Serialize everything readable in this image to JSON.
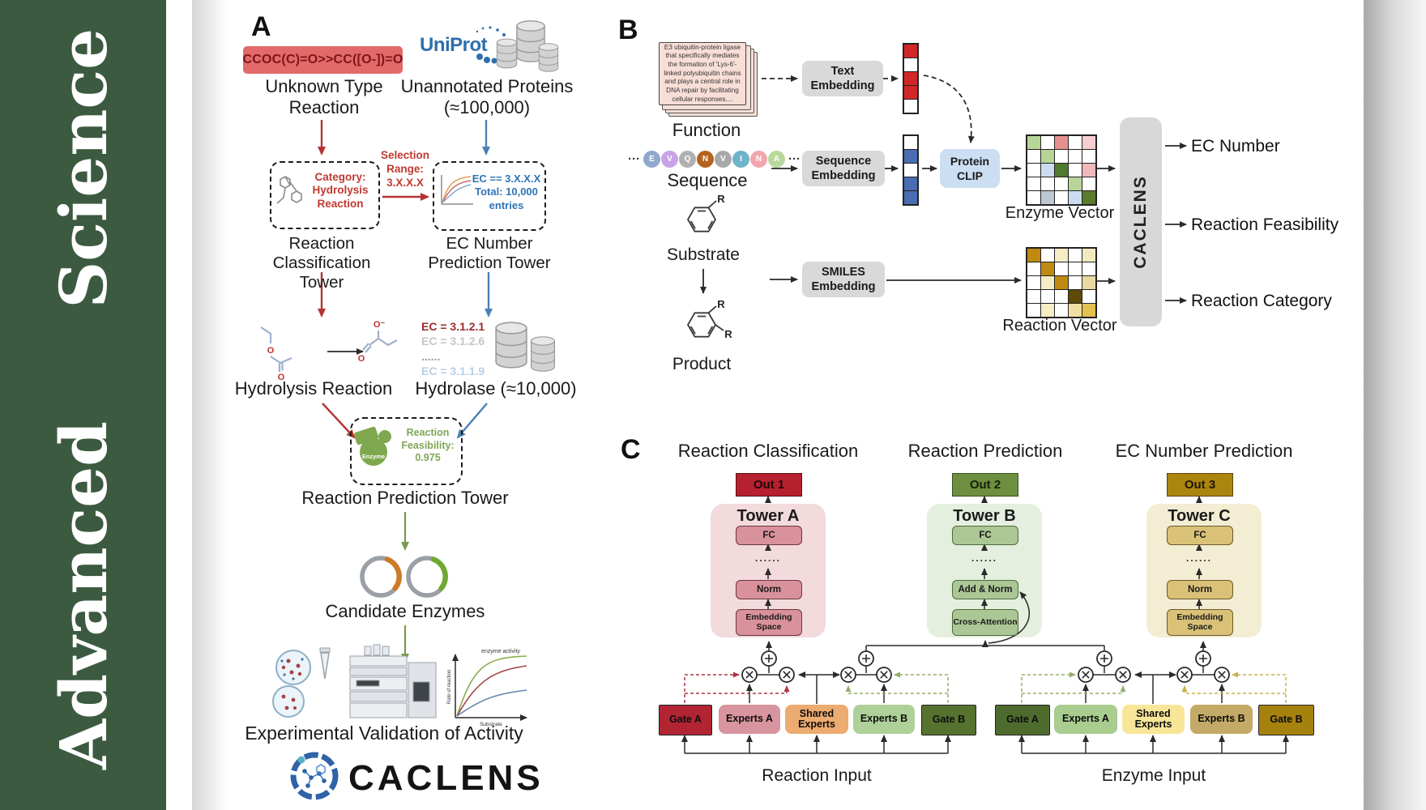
{
  "journal": {
    "name_words": [
      "Advanced",
      "Science"
    ]
  },
  "colors": {
    "sidebar_green": "#3c5a40",
    "red_accent": "#b63232",
    "blue_accent": "#4c80b5",
    "green_accent": "#7a9a4e",
    "uniprot_blue": "#2f6fae",
    "out1": "#b7202e",
    "out2": "#6d8f3f",
    "out3": "#ab850f"
  },
  "panelA": {
    "label": "A",
    "smiles": "CCOC(C)=O>>CC([O-])=O",
    "unknown_reaction": "Unknown Type Reaction",
    "uniprot": "UniProt",
    "unannotated": "Unannotated Proteins (≈100,000)",
    "category_text": "Category: Hydrolysis Reaction",
    "selection_text": "Selection Range: 3.X.X.X",
    "ec_condition": "EC == 3.X.X.X",
    "ec_total": "Total: 10,000 entries",
    "tower1": "Reaction Classification Tower",
    "tower2": "EC Number Prediction Tower",
    "hydrolysis": "Hydrolysis Reaction",
    "ec_list": [
      {
        "text": "EC = 3.1.2.1",
        "color": "#9c2b2b"
      },
      {
        "text": "EC = 3.1.2.6",
        "color": "#c6c6c6"
      },
      {
        "text": "......",
        "color": "#9a9a9a"
      },
      {
        "text": "EC = 3.1.1.9",
        "color": "#b9cfe6"
      }
    ],
    "hydrolase": "Hydrolase (≈10,000)",
    "enzyme_label": "Enzyme",
    "feasibility_label": "Reaction Feasibility:",
    "feasibility_value": "0.975",
    "tower3": "Reaction Prediction Tower",
    "candidates": "Candidate Enzymes",
    "chart": {
      "curve_label": "enzyme activity",
      "ylabel": "Rate of reaction",
      "xlabel": "Substrate"
    },
    "validation": "Experimental Validation of Activity",
    "logo": "CACLENS",
    "o_label": "O",
    "ominus_label": "O⁻"
  },
  "panelB": {
    "label": "B",
    "function_card": "E3 ubiquitin-protein ligase that specifically mediates the formation of 'Lys-6'-linked polyubiquitin chains and plays a central role in DNA repair by facilitating cellular responses....",
    "function_label": "Function",
    "ellipsis": "···",
    "residues": [
      {
        "letter": "E",
        "color": "#8fa8cc"
      },
      {
        "letter": "V",
        "color": "#c9a3e8"
      },
      {
        "letter": "Q",
        "color": "#b0b0b0"
      },
      {
        "letter": "N",
        "color": "#b5621f"
      },
      {
        "letter": "V",
        "color": "#a8a8a8"
      },
      {
        "letter": "I",
        "color": "#6fb3c9"
      },
      {
        "letter": "N",
        "color": "#f2a6ae"
      },
      {
        "letter": "A",
        "color": "#b8d89c"
      }
    ],
    "sequence_label": "Sequence",
    "text_embedding": "Text Embedding",
    "sequence_embedding": "Sequence Embedding",
    "smiles_embedding": "SMILES Embedding",
    "protein_clip": "Protein CLIP",
    "substrate_label": "Substrate",
    "product_label": "Product",
    "r_label": "R",
    "text_vector": [
      "#d42626",
      "#ffffff",
      "#d42626",
      "#d42626",
      "#ffffff"
    ],
    "seq_vector": [
      "#ffffff",
      "#4a6cb3",
      "#ffffff",
      "#4a6cb3",
      "#4a6cb3"
    ],
    "enzyme_vector": {
      "label": "Enzyme Vector",
      "cells": [
        "#b8d598",
        "#ffffff",
        "#e89090",
        "#ffffff",
        "#f6cdd0",
        "#ffffff",
        "#b8d598",
        "#ffffff",
        "#ffffff",
        "#ffffff",
        "#ffffff",
        "#ccdcf0",
        "#4f7a30",
        "#ffffff",
        "#f0b8bc",
        "#ffffff",
        "#ffffff",
        "#ffffff",
        "#b8d598",
        "#ffffff",
        "#ffffff",
        "#bcc8d4",
        "#ffffff",
        "#ccdcf0",
        "#5a7a2e"
      ]
    },
    "reaction_vector": {
      "label": "Reaction Vector",
      "cells": [
        "#c08a10",
        "#ffffff",
        "#f6edc4",
        "#ffffff",
        "#f3e9c0",
        "#ffffff",
        "#c08a10",
        "#ffffff",
        "#ffffff",
        "#ffffff",
        "#ffffff",
        "#f6edc4",
        "#c08a10",
        "#ffffff",
        "#ead9a0",
        "#ffffff",
        "#ffffff",
        "#ffffff",
        "#5f4a06",
        "#ffffff",
        "#ffffff",
        "#f6edc4",
        "#ffffff",
        "#f0dfa0",
        "#e3c14e"
      ]
    },
    "caclens": "CACLENS",
    "outputs": [
      "EC Number",
      "Reaction Feasibility",
      "Reaction Category"
    ]
  },
  "panelC": {
    "label": "C",
    "headers": [
      "Reaction Classification",
      "Reaction Prediction",
      "EC Number Prediction"
    ],
    "outs": [
      "Out 1",
      "Out 2",
      "Out 3"
    ],
    "tower_a": {
      "title": "Tower A",
      "fc": "FC",
      "dots": "......",
      "norm": "Norm",
      "embed": "Embedding Space"
    },
    "tower_b": {
      "title": "Tower B",
      "fc": "FC",
      "dots": "......",
      "addnorm": "Add & Norm",
      "cross": "Cross-Attention"
    },
    "tower_c": {
      "title": "Tower C",
      "fc": "FC",
      "dots": "......",
      "norm": "Norm",
      "embed": "Embedding Space"
    },
    "reaction_group": {
      "gate_a": "Gate A",
      "experts_a": "Experts A",
      "shared": "Shared Experts",
      "experts_b": "Experts B",
      "gate_b": "Gate B",
      "input": "Reaction Input"
    },
    "enzyme_group": {
      "gate_a": "Gate A",
      "experts_a": "Experts A",
      "shared": "Shared Experts",
      "experts_b": "Experts B",
      "gate_b": "Gate B",
      "input": "Enzyme Input"
    }
  }
}
